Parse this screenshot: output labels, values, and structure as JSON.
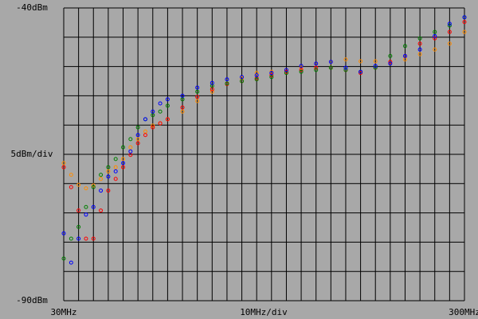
{
  "chart_data": {
    "type": "scatter",
    "xlim": [
      30,
      300
    ],
    "ylim": [
      -90,
      -40
    ],
    "xticks": [
      {
        "value": 30,
        "label": "30MHz"
      },
      {
        "value": 300,
        "label": "300MHz"
      }
    ],
    "yticks": [
      {
        "value": -40,
        "label": "-40dBm"
      },
      {
        "value": -90,
        "label": "-90dBm"
      }
    ],
    "x_scale_label": "10MHz/div",
    "y_scale_label": "5dBm/div",
    "xgrid": [
      30,
      40,
      50,
      60,
      70,
      80,
      90,
      100,
      110,
      120,
      130,
      140,
      150,
      160,
      170,
      180,
      190,
      200,
      210,
      220,
      230,
      240,
      250,
      260,
      270,
      280,
      290,
      300
    ],
    "ygrid": [
      -40,
      -45,
      -50,
      -55,
      -60,
      -65,
      -70,
      -75,
      -80,
      -85,
      -90
    ],
    "x": [
      30,
      35,
      40,
      45,
      50,
      55,
      60,
      65,
      70,
      75,
      80,
      85,
      90,
      95,
      100,
      110,
      120,
      130,
      140,
      150,
      160,
      170,
      180,
      190,
      200,
      210,
      220,
      230,
      240,
      250,
      260,
      270,
      280,
      290,
      300
    ],
    "series": [
      {
        "color": "#ff8c00",
        "values": [
          -66.5,
          -68.5,
          -70.2,
          -70.8,
          -70.3,
          -69.2,
          -67.9,
          -67.2,
          -65.8,
          -63.8,
          -62.4,
          -61.1,
          -60.1,
          -59.7,
          -59,
          -57.7,
          -55.9,
          -54.3,
          -52.9,
          -52,
          -51.1,
          -50.9,
          -50.6,
          -50.2,
          -49.5,
          -49.2,
          -48.8,
          -49.1,
          -49.1,
          -49.5,
          -48.8,
          -47.9,
          -47.1,
          -46.1,
          -44.1
        ]
      },
      {
        "color": "#ff0000",
        "values": [
          -67.2,
          -70.6,
          -74.6,
          -79.4,
          -79.4,
          -74.6,
          -71.2,
          -69.2,
          -67.2,
          -65.1,
          -63.1,
          -61.7,
          -60.4,
          -59.7,
          -59,
          -57,
          -55.2,
          -53.9,
          -53,
          -52.5,
          -52,
          -51.5,
          -50.9,
          -50.6,
          -50.2,
          -50.2,
          -50.6,
          -51.1,
          -50.2,
          -49.2,
          -48.2,
          -46.1,
          -45.2,
          -44.1,
          -42.4
        ]
      },
      {
        "color": "#008000",
        "values": [
          -82.8,
          -79.4,
          -77.4,
          -74,
          -70.6,
          -68.5,
          -67.2,
          -65.8,
          -63.8,
          -62.4,
          -60.4,
          -59,
          -58.3,
          -57.7,
          -56.7,
          -55.6,
          -54.3,
          -53.3,
          -52.9,
          -52.5,
          -52.2,
          -51.8,
          -51.1,
          -50.9,
          -50.6,
          -50.2,
          -50.6,
          -50.9,
          -50.2,
          -48.2,
          -46.5,
          -45.2,
          -44.1,
          -43,
          -41.6
        ]
      },
      {
        "color": "#0000ff",
        "values": [
          -78.5,
          -83.5,
          -79.4,
          -75.3,
          -74,
          -71.2,
          -68.8,
          -67.9,
          -66.5,
          -64.5,
          -61.7,
          -59,
          -57.7,
          -56.3,
          -55.6,
          -55,
          -53.6,
          -52.8,
          -52.2,
          -51.8,
          -51.5,
          -51.1,
          -50.6,
          -49.9,
          -49.5,
          -49.2,
          -50.2,
          -50.9,
          -49.9,
          -49.5,
          -48.2,
          -47.1,
          -44.8,
          -42.7,
          -41.6
        ]
      }
    ]
  }
}
